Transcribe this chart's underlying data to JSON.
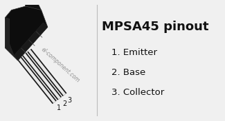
{
  "title": "MPSA45 pinout",
  "pins": [
    {
      "number": "1",
      "name": "Emitter"
    },
    {
      "number": "2",
      "name": "Base"
    },
    {
      "number": "3",
      "name": "Collector"
    }
  ],
  "watermark": "el-component.com",
  "bg_color": "#f0f0f0",
  "text_color": "#111111",
  "title_fontsize": 13,
  "pin_fontsize": 9.5,
  "number_fontsize": 7,
  "watermark_fontsize": 5.5
}
